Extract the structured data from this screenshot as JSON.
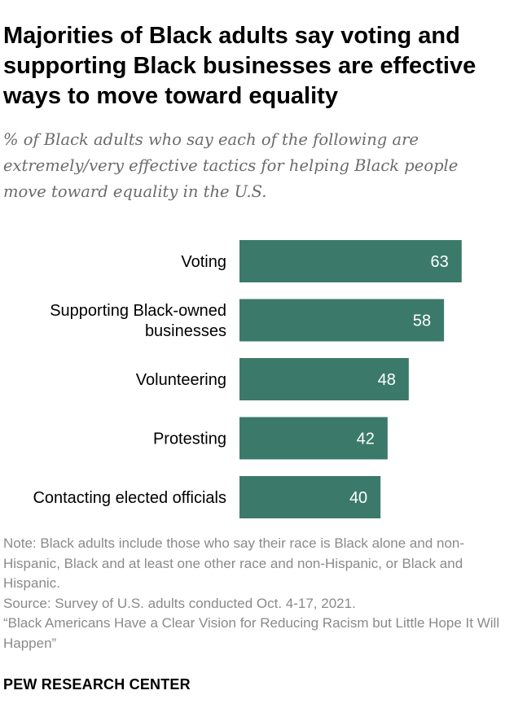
{
  "title": "Majorities of Black adults say voting and supporting Black businesses are effective ways to move toward equality",
  "subtitle": "% of Black adults who say each of the following are extremely/very effective tactics for helping Black people move toward equality in the U.S.",
  "notes": {
    "note": "Note: Black adults include those who say their race is Black alone and non-Hispanic, Black and at least one other race and non-Hispanic, or Black and Hispanic.",
    "source": "Source: Survey of U.S. adults conducted Oct. 4-17, 2021.",
    "report": "“Black Americans Have a Clear Vision for Reducing Racism but Little Hope It Will Happen”"
  },
  "brand": "PEW RESEARCH CENTER",
  "colors": {
    "bar": "#3b7a6a",
    "bar_label": "#ffffff",
    "category_label": "#000000"
  },
  "chart_data": {
    "type": "bar",
    "orientation": "horizontal",
    "categories": [
      [
        "Voting"
      ],
      [
        "Supporting Black-owned",
        "businesses"
      ],
      [
        "Volunteering"
      ],
      [
        "Protesting"
      ],
      [
        "Contacting elected officials"
      ]
    ],
    "values": [
      63,
      58,
      48,
      42,
      40
    ],
    "xlim": [
      0,
      100
    ],
    "grid": false,
    "legend": "none"
  }
}
